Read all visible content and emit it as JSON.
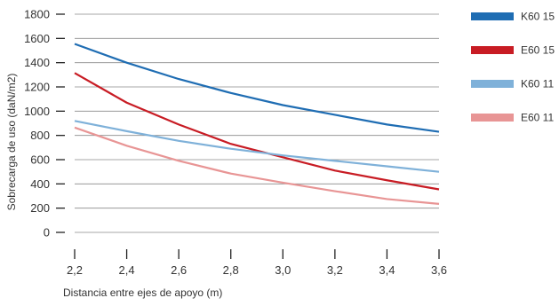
{
  "chart_data": {
    "type": "line",
    "xlabel": "Distancia entre ejes de apoyo (m)",
    "ylabel": "Sobrecarga de uso (daN/m2)",
    "x": [
      2.2,
      2.4,
      2.6,
      2.8,
      3.0,
      3.2,
      3.4,
      3.6
    ],
    "x_tick_labels": [
      "2,2",
      "2,4",
      "2,6",
      "2,8",
      "3,0",
      "3,2",
      "3,4",
      "3,6"
    ],
    "y_ticks": [
      0,
      200,
      400,
      600,
      800,
      1000,
      1200,
      1400,
      1600,
      1800
    ],
    "xlim": [
      2.2,
      3.6
    ],
    "ylim": [
      0,
      1800
    ],
    "grid": "horizontal",
    "legend_position": "right",
    "series": [
      {
        "name": "K60 15",
        "color": "#1f6db3",
        "values": [
          1555,
          1400,
          1265,
          1150,
          1050,
          970,
          890,
          830
        ]
      },
      {
        "name": "E60 15",
        "color": "#c81c24",
        "values": [
          1315,
          1070,
          890,
          730,
          620,
          510,
          430,
          355
        ]
      },
      {
        "name": "K60 11",
        "color": "#7fb1d9",
        "values": [
          920,
          835,
          755,
          690,
          635,
          590,
          545,
          500
        ]
      },
      {
        "name": "E60 11",
        "color": "#e89595",
        "values": [
          865,
          715,
          590,
          485,
          410,
          340,
          275,
          235
        ]
      }
    ]
  }
}
